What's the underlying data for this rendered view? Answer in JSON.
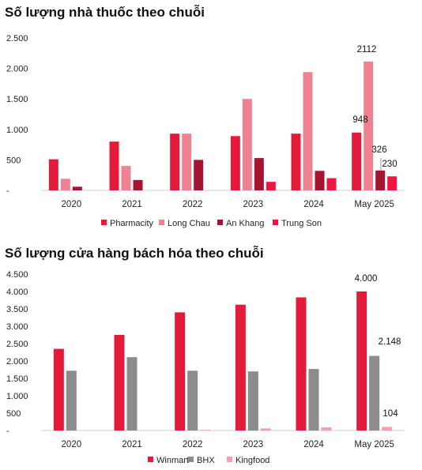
{
  "chart_data": [
    {
      "type": "bar",
      "title": "Số lượng nhà thuốc theo chuỗi",
      "categories": [
        "2020",
        "2021",
        "2022",
        "2023",
        "2024",
        "May 2025"
      ],
      "ylim": [
        0,
        2500
      ],
      "yticks": [
        "-",
        "500",
        "1.000",
        "1.500",
        "2.000",
        "2.500"
      ],
      "grid": false,
      "legend": "bottom",
      "series": [
        {
          "name": "Pharmacity",
          "color": "#e31b3b",
          "values": [
            510,
            800,
            930,
            890,
            930,
            948
          ]
        },
        {
          "name": "Long Chau",
          "color": "#ef8290",
          "values": [
            190,
            400,
            930,
            1500,
            1940,
            2112
          ]
        },
        {
          "name": "An Khang",
          "color": "#a51530",
          "values": [
            60,
            170,
            500,
            530,
            320,
            326
          ]
        },
        {
          "name": "Trung Son",
          "color": "#f0163f",
          "values": [
            0,
            0,
            0,
            140,
            200,
            230
          ]
        }
      ],
      "data_labels": [
        "948",
        "2112",
        "326",
        "230"
      ]
    },
    {
      "type": "bar",
      "title": "Số lượng cửa hàng bách hóa theo chuỗi",
      "categories": [
        "2020",
        "2021",
        "2022",
        "2023",
        "2024",
        "May 2025"
      ],
      "ylim": [
        0,
        4500
      ],
      "yticks": [
        "-",
        "500",
        "1.000",
        "1.500",
        "2.000",
        "2.500",
        "3.000",
        "3.500",
        "4.000",
        "4.500"
      ],
      "grid": false,
      "legend": "bottom",
      "series": [
        {
          "name": "Winmart",
          "color": "#e31b3b",
          "values": [
            2350,
            2750,
            3400,
            3620,
            3830,
            4000
          ]
        },
        {
          "name": "BHX",
          "color": "#8c8c8c",
          "values": [
            1720,
            2110,
            1720,
            1700,
            1770,
            2148
          ]
        },
        {
          "name": "Kingfood",
          "color": "#f2a0ad",
          "values": [
            0,
            0,
            20,
            60,
            90,
            104
          ]
        }
      ],
      "data_labels": [
        "4.000",
        "2.148",
        "104"
      ]
    }
  ]
}
